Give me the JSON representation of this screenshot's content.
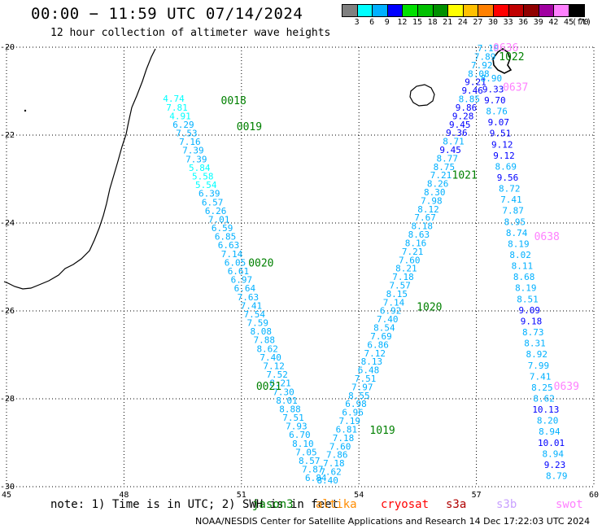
{
  "header": {
    "title": "00:00 − 11:59 UTC 07/14/2024",
    "subtitle": "12 hour collection of altimeter wave heights"
  },
  "colorbar": {
    "ticks": [
      "3",
      "6",
      "9",
      "12",
      "15",
      "18",
      "21",
      "24",
      "27",
      "30",
      "33",
      "36",
      "39",
      "42",
      "45",
      "70"
    ],
    "unit": "(ft)",
    "colors": [
      "#808080",
      "#00ffff",
      "#00b0ff",
      "#0000ff",
      "#00e000",
      "#00c000",
      "#009000",
      "#ffff00",
      "#ffc000",
      "#ff8000",
      "#ff0000",
      "#c00000",
      "#900000",
      "#a000a0",
      "#ff80ff",
      "#000000"
    ]
  },
  "footer": {
    "note": "note: 1) Time is in UTC; 2) SWH is in feet",
    "missions": [
      {
        "name": "jason3",
        "color": "#008000"
      },
      {
        "name": "altika",
        "color": "#ff8c00"
      },
      {
        "name": "cryosat",
        "color": "#ff0000"
      },
      {
        "name": "s3a",
        "color": "#b00000"
      },
      {
        "name": "s3b",
        "color": "#c8a0ff"
      },
      {
        "name": "swot",
        "color": "#ff80ff"
      }
    ],
    "credit": "NOAA/NESDIS Center for Satellite Applications and Research   14 Dec 17:22:03 UTC 2024"
  },
  "chart_data": {
    "type": "scatter",
    "xlim": [
      45,
      60
    ],
    "ylim": [
      -30,
      -20
    ],
    "x_ticks": [
      "45",
      "48",
      "51",
      "54",
      "57",
      "60"
    ],
    "y_ticks": [
      "-20",
      "-22",
      "-24",
      "-26",
      "-28",
      "-30"
    ],
    "grid": true,
    "series": [
      {
        "name": "jason3",
        "label_color": "#008000",
        "time_labels": [
          {
            "text": "0018",
            "lon": 50.8,
            "lat": -21.2
          },
          {
            "text": "0019",
            "lon": 51.2,
            "lat": -21.8
          },
          {
            "text": "0020",
            "lon": 51.5,
            "lat": -24.9
          },
          {
            "text": "0021",
            "lon": 51.7,
            "lat": -27.7
          },
          {
            "text": "1019",
            "lon": 54.6,
            "lat": -28.7
          },
          {
            "text": "1020",
            "lon": 55.8,
            "lat": -25.9
          },
          {
            "text": "1021",
            "lon": 56.7,
            "lat": -22.9
          },
          {
            "text": "1022",
            "lon": 57.9,
            "lat": -20.2
          }
        ],
        "tracks": [
          {
            "start": [
              49.27,
              -21.17
            ],
            "end": [
              52.9,
              -29.8
            ],
            "values": [
              "4.74",
              "7.81",
              "4.91",
              "6.29",
              "7.53",
              "7.16",
              "7.39",
              "7.39",
              "5.84",
              "5.58",
              "5.54",
              "6.39",
              "6.57",
              "6.26",
              "7.01",
              "6.59",
              "6.85",
              "6.63",
              "7.14",
              "6.05",
              "6.61",
              "6.97",
              "6.64",
              "7.63",
              "7.41",
              "7.54",
              "7.59",
              "8.08",
              "7.88",
              "8.62",
              "7.40",
              "7.12",
              "7.52",
              "8.21",
              "7.30",
              "8.01",
              "8.88",
              "7.51",
              "7.93",
              "6.70",
              "8.10",
              "7.05",
              "8.57",
              "7.87",
              "6.84"
            ],
            "colors": [
              "#00ffff",
              "#00ffff",
              "#00ffff",
              "#00b0ff",
              "#00b0ff",
              "#00b0ff",
              "#00b0ff",
              "#00b0ff",
              "#00ffff",
              "#00ffff",
              "#00ffff",
              "#00b0ff",
              "#00b0ff",
              "#00b0ff",
              "#00b0ff",
              "#00b0ff",
              "#00b0ff",
              "#00b0ff",
              "#00b0ff",
              "#00b0ff",
              "#00b0ff",
              "#00b0ff",
              "#00b0ff",
              "#00b0ff",
              "#00b0ff",
              "#00b0ff",
              "#00b0ff",
              "#00b0ff",
              "#00b0ff",
              "#00b0ff",
              "#00b0ff",
              "#00b0ff",
              "#00b0ff",
              "#00b0ff",
              "#00b0ff",
              "#00b0ff",
              "#00b0ff",
              "#00b0ff",
              "#00b0ff",
              "#00b0ff",
              "#00b0ff",
              "#00b0ff",
              "#00b0ff",
              "#00b0ff",
              "#00b0ff"
            ]
          },
          {
            "start": [
              53.2,
              -29.85
            ],
            "end": [
              57.3,
              -20.02
            ],
            "values": [
              "8.40",
              "7.62",
              "7.18",
              "7.86",
              "7.60",
              "7.18",
              "6.81",
              "7.19",
              "6.96",
              "6.98",
              "8.55",
              "7.97",
              "7.51",
              "6.48",
              "8.13",
              "7.12",
              "6.86",
              "7.69",
              "8.54",
              "7.40",
              "6.92",
              "7.14",
              "8.15",
              "7.57",
              "7.18",
              "8.21",
              "7.60",
              "7.21",
              "8.16",
              "8.63",
              "8.18",
              "7.67",
              "8.12",
              "7.98",
              "8.30",
              "8.26",
              "7.21",
              "8.75",
              "8.77",
              "9.45",
              "8.71",
              "9.36",
              "9.45",
              "9.28",
              "9.86",
              "8.85",
              "9.46",
              "9.21",
              "8.08",
              "7.92",
              "7.89",
              "7.19"
            ],
            "colors": [
              "#00b0ff",
              "#00b0ff",
              "#00b0ff",
              "#00b0ff",
              "#00b0ff",
              "#00b0ff",
              "#00b0ff",
              "#00b0ff",
              "#00b0ff",
              "#00b0ff",
              "#00b0ff",
              "#00b0ff",
              "#00b0ff",
              "#00b0ff",
              "#00b0ff",
              "#00b0ff",
              "#00b0ff",
              "#00b0ff",
              "#00b0ff",
              "#00b0ff",
              "#00b0ff",
              "#00b0ff",
              "#00b0ff",
              "#00b0ff",
              "#00b0ff",
              "#00b0ff",
              "#00b0ff",
              "#00b0ff",
              "#00b0ff",
              "#00b0ff",
              "#00b0ff",
              "#00b0ff",
              "#00b0ff",
              "#00b0ff",
              "#00b0ff",
              "#00b0ff",
              "#00b0ff",
              "#00b0ff",
              "#00b0ff",
              "#0000ff",
              "#00b0ff",
              "#0000ff",
              "#0000ff",
              "#0000ff",
              "#0000ff",
              "#00b0ff",
              "#0000ff",
              "#0000ff",
              "#00b0ff",
              "#00b0ff",
              "#00b0ff",
              "#00b0ff"
            ]
          }
        ]
      },
      {
        "name": "swot",
        "label_color": "#ff80ff",
        "time_labels": [
          {
            "text": "0636",
            "lon": 57.75,
            "lat": -20.0
          },
          {
            "text": "0637",
            "lon": 58.0,
            "lat": -20.9
          },
          {
            "text": "0638",
            "lon": 58.8,
            "lat": -24.3
          },
          {
            "text": "0639",
            "lon": 59.3,
            "lat": -27.7
          }
        ],
        "tracks": [
          {
            "start": [
              57.38,
              -20.7
            ],
            "end": [
              59.05,
              -29.75
            ],
            "values": [
              "8.90",
              "9.33",
              "9.70",
              "8.76",
              "9.07",
              "9.51",
              "9.12",
              "9.12",
              "8.69",
              "9.56",
              "8.72",
              "7.41",
              "7.87",
              "8.95",
              "8.74",
              "8.19",
              "8.02",
              "8.11",
              "8.68",
              "8.19",
              "8.51",
              "9.09",
              "9.18",
              "8.73",
              "8.31",
              "8.92",
              "7.99",
              "7.41",
              "8.25",
              "8.62",
              "10.13",
              "8.20",
              "8.94",
              "10.01",
              "8.94",
              "9.23",
              "8.79"
            ],
            "colors": [
              "#00b0ff",
              "#0000ff",
              "#0000ff",
              "#00b0ff",
              "#0000ff",
              "#0000ff",
              "#0000ff",
              "#0000ff",
              "#00b0ff",
              "#0000ff",
              "#00b0ff",
              "#00b0ff",
              "#00b0ff",
              "#00b0ff",
              "#00b0ff",
              "#00b0ff",
              "#00b0ff",
              "#00b0ff",
              "#00b0ff",
              "#00b0ff",
              "#00b0ff",
              "#0000ff",
              "#0000ff",
              "#00b0ff",
              "#00b0ff",
              "#00b0ff",
              "#00b0ff",
              "#00b0ff",
              "#00b0ff",
              "#00b0ff",
              "#0000ff",
              "#00b0ff",
              "#00b0ff",
              "#0000ff",
              "#00b0ff",
              "#0000ff",
              "#00b0ff"
            ]
          }
        ]
      }
    ]
  }
}
